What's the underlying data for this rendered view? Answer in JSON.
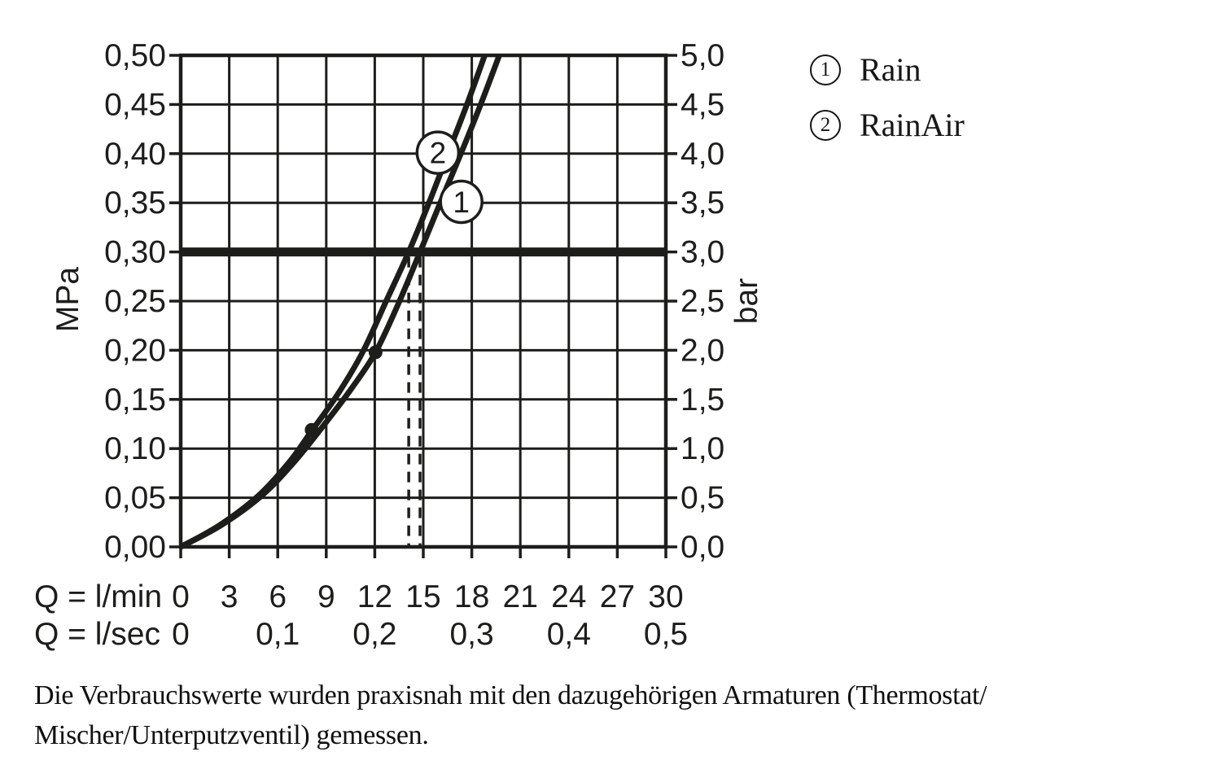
{
  "colors": {
    "ink": "#1d1d1b",
    "background": "#ffffff"
  },
  "legend": {
    "items": [
      {
        "number": "1",
        "label": "Rain"
      },
      {
        "number": "2",
        "label": "RainAir"
      }
    ]
  },
  "footnote": {
    "lines": [
      "Die Verbrauchswerte wurden praxisnah mit den dazugehörigen Armaturen (Thermostat/",
      "Mischer/Unterputzventil) gemessen."
    ]
  },
  "chart_data": {
    "type": "line",
    "title": "",
    "grid": true,
    "x_axis": {
      "min": 0,
      "max": 30,
      "grid_step": 3,
      "row1_label": "Q = l/min",
      "row1_ticks": [
        {
          "value": 0,
          "label": "0"
        },
        {
          "value": 3,
          "label": "3"
        },
        {
          "value": 6,
          "label": "6"
        },
        {
          "value": 9,
          "label": "9"
        },
        {
          "value": 12,
          "label": "12"
        },
        {
          "value": 15,
          "label": "15"
        },
        {
          "value": 18,
          "label": "18"
        },
        {
          "value": 21,
          "label": "21"
        },
        {
          "value": 24,
          "label": "24"
        },
        {
          "value": 27,
          "label": "27"
        },
        {
          "value": 30,
          "label": "30"
        }
      ],
      "row2_label": "Q = l/sec",
      "row2_ticks": [
        {
          "value": 0,
          "label": "0"
        },
        {
          "value": 6,
          "label": "0,1"
        },
        {
          "value": 12,
          "label": "0,2"
        },
        {
          "value": 18,
          "label": "0,3"
        },
        {
          "value": 24,
          "label": "0,4"
        },
        {
          "value": 30,
          "label": "0,5"
        }
      ]
    },
    "y_axis_left": {
      "unit": "MPa",
      "min": 0,
      "max": 0.5,
      "grid_step": 0.05,
      "ticks": [
        {
          "value": 0.5,
          "label": "0,50"
        },
        {
          "value": 0.45,
          "label": "0,45"
        },
        {
          "value": 0.4,
          "label": "0,40"
        },
        {
          "value": 0.35,
          "label": "0,35"
        },
        {
          "value": 0.3,
          "label": "0,30"
        },
        {
          "value": 0.25,
          "label": "0,25"
        },
        {
          "value": 0.2,
          "label": "0,20"
        },
        {
          "value": 0.15,
          "label": "0,15"
        },
        {
          "value": 0.1,
          "label": "0,10"
        },
        {
          "value": 0.05,
          "label": "0,05"
        },
        {
          "value": 0.0,
          "label": "0,00"
        }
      ]
    },
    "y_axis_right": {
      "unit": "bar",
      "min": 0,
      "max": 5,
      "ticks": [
        {
          "value": 0.5,
          "label": "5,0"
        },
        {
          "value": 0.45,
          "label": "4,5"
        },
        {
          "value": 0.4,
          "label": "4,0"
        },
        {
          "value": 0.35,
          "label": "3,5"
        },
        {
          "value": 0.3,
          "label": "3,0"
        },
        {
          "value": 0.25,
          "label": "2,5"
        },
        {
          "value": 0.2,
          "label": "2,0"
        },
        {
          "value": 0.15,
          "label": "1,5"
        },
        {
          "value": 0.1,
          "label": "1,0"
        },
        {
          "value": 0.05,
          "label": "0,5"
        },
        {
          "value": 0.0,
          "label": "0,0"
        }
      ]
    },
    "reference_line": {
      "y_mpa": 0.3,
      "y_bar": 3.0
    },
    "dashed_guides_x_lmin": [
      14.1,
      14.8
    ],
    "series": [
      {
        "id": "1",
        "name": "Rain",
        "flow_at_3bar_lmin": 14.8,
        "points": [
          [
            0,
            0
          ],
          [
            2.5,
            0.022
          ],
          [
            5,
            0.052
          ],
          [
            7,
            0.086
          ],
          [
            9,
            0.127
          ],
          [
            10.6,
            0.162
          ],
          [
            12.05,
            0.198
          ],
          [
            13.45,
            0.247
          ],
          [
            14.8,
            0.3
          ],
          [
            16.1,
            0.352
          ],
          [
            17.35,
            0.401
          ],
          [
            18.55,
            0.45
          ],
          [
            19.7,
            0.5
          ]
        ]
      },
      {
        "id": "2",
        "name": "RainAir",
        "flow_at_3bar_lmin": 14.1,
        "points": [
          [
            0,
            0
          ],
          [
            2.4,
            0.022
          ],
          [
            4.8,
            0.052
          ],
          [
            6.7,
            0.086
          ],
          [
            8.1,
            0.118
          ],
          [
            9.7,
            0.155
          ],
          [
            11.25,
            0.198
          ],
          [
            12.65,
            0.248
          ],
          [
            14.1,
            0.3
          ],
          [
            15.4,
            0.352
          ],
          [
            16.55,
            0.401
          ],
          [
            17.7,
            0.45
          ],
          [
            18.8,
            0.5
          ]
        ]
      }
    ],
    "point_markers": [
      [
        8.1,
        0.119
      ],
      [
        12.05,
        0.198
      ]
    ],
    "series_badges": [
      {
        "number": "2",
        "x": 15.9,
        "y": 0.401
      },
      {
        "number": "1",
        "x": 17.35,
        "y": 0.351
      }
    ],
    "legend_position": "right-top"
  }
}
